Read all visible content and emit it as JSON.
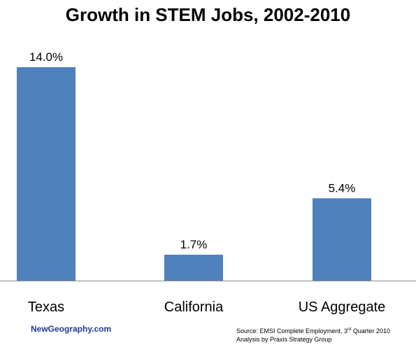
{
  "chart_data": {
    "type": "bar",
    "title": "Growth in STEM Jobs, 2002-2010",
    "categories": [
      "Texas",
      "California",
      "US Aggregate"
    ],
    "values": [
      14.0,
      1.7,
      5.4
    ],
    "value_labels": [
      "14.0%",
      "1.7%",
      "5.4%"
    ],
    "ylim": [
      0,
      14.0
    ],
    "grid": false,
    "bar_color": "#4F81BD"
  },
  "footer": {
    "brand": "NewGeography.com",
    "brand_color": "#1F3A93",
    "source_line1_prefix": "Source: EMSI Complete Employment, 3",
    "source_line1_sup": "rd",
    "source_line1_suffix": " Quarter 2010",
    "source_line2": "Analysis by Praxis Strategy Group"
  }
}
